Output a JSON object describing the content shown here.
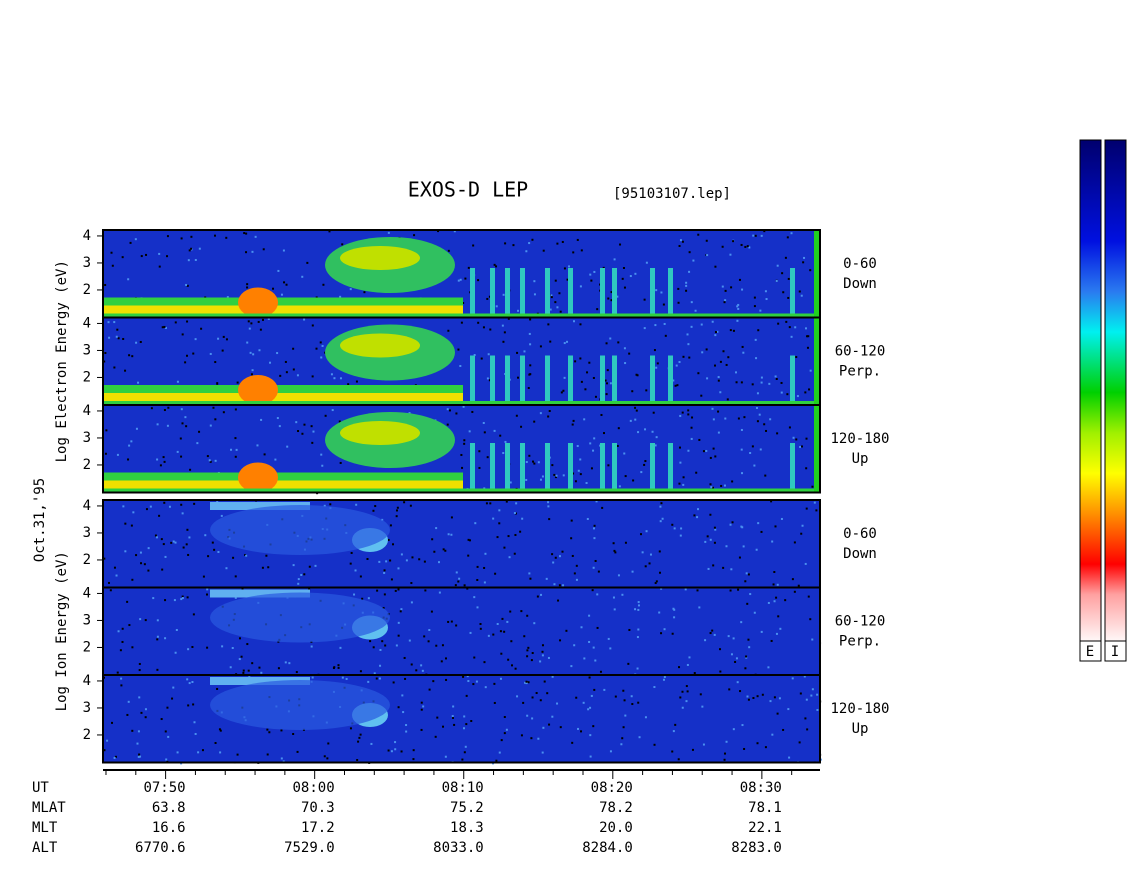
{
  "title": "EXOS-D LEP",
  "file": "[95103107.lep]",
  "date": "Oct.31,'95",
  "chart_data": {
    "type": "spectrogram",
    "xlim": [
      465.8,
      513.9
    ],
    "xticks": [
      {
        "value": 470,
        "label": "07:50"
      },
      {
        "value": 480,
        "label": "08:00"
      },
      {
        "value": 490,
        "label": "08:10"
      },
      {
        "value": 500,
        "label": "08:20"
      },
      {
        "value": 510,
        "label": "08:30"
      }
    ],
    "xminor": [
      466,
      468,
      472,
      474,
      476,
      478,
      482,
      484,
      486,
      488,
      492,
      494,
      496,
      498,
      502,
      504,
      506,
      508,
      512
    ],
    "ylim": [
      0.98,
      4.22
    ],
    "yticks": [
      2,
      3,
      4
    ],
    "groups": [
      {
        "ylabel": "Log Electron Energy (eV)",
        "panels": [
          {
            "label": "0-60",
            "dir": "Down"
          },
          {
            "label": "60-120",
            "dir": "Perp."
          },
          {
            "label": "120-180",
            "dir": "Up"
          }
        ]
      },
      {
        "ylabel": "Log Ion Energy (eV)",
        "panels": [
          {
            "label": "0-60",
            "dir": "Down"
          },
          {
            "label": "60-120",
            "dir": "Perp."
          },
          {
            "label": "120-180",
            "dir": "Up"
          }
        ]
      }
    ]
  },
  "ephemeris": {
    "time_label": "UT",
    "rows": [
      {
        "name": "MLAT",
        "values": [
          "63.8",
          "70.3",
          "75.2",
          "78.2",
          "78.1"
        ]
      },
      {
        "name": "MLT",
        "values": [
          "16.6",
          "17.2",
          "18.3",
          "20.0",
          "22.1"
        ]
      },
      {
        "name": "ALT",
        "values": [
          "6770.6",
          "7529.0",
          "8033.0",
          "8284.0",
          "8283.0"
        ]
      }
    ]
  },
  "colorbar": {
    "labels": [
      "E",
      "I"
    ]
  }
}
